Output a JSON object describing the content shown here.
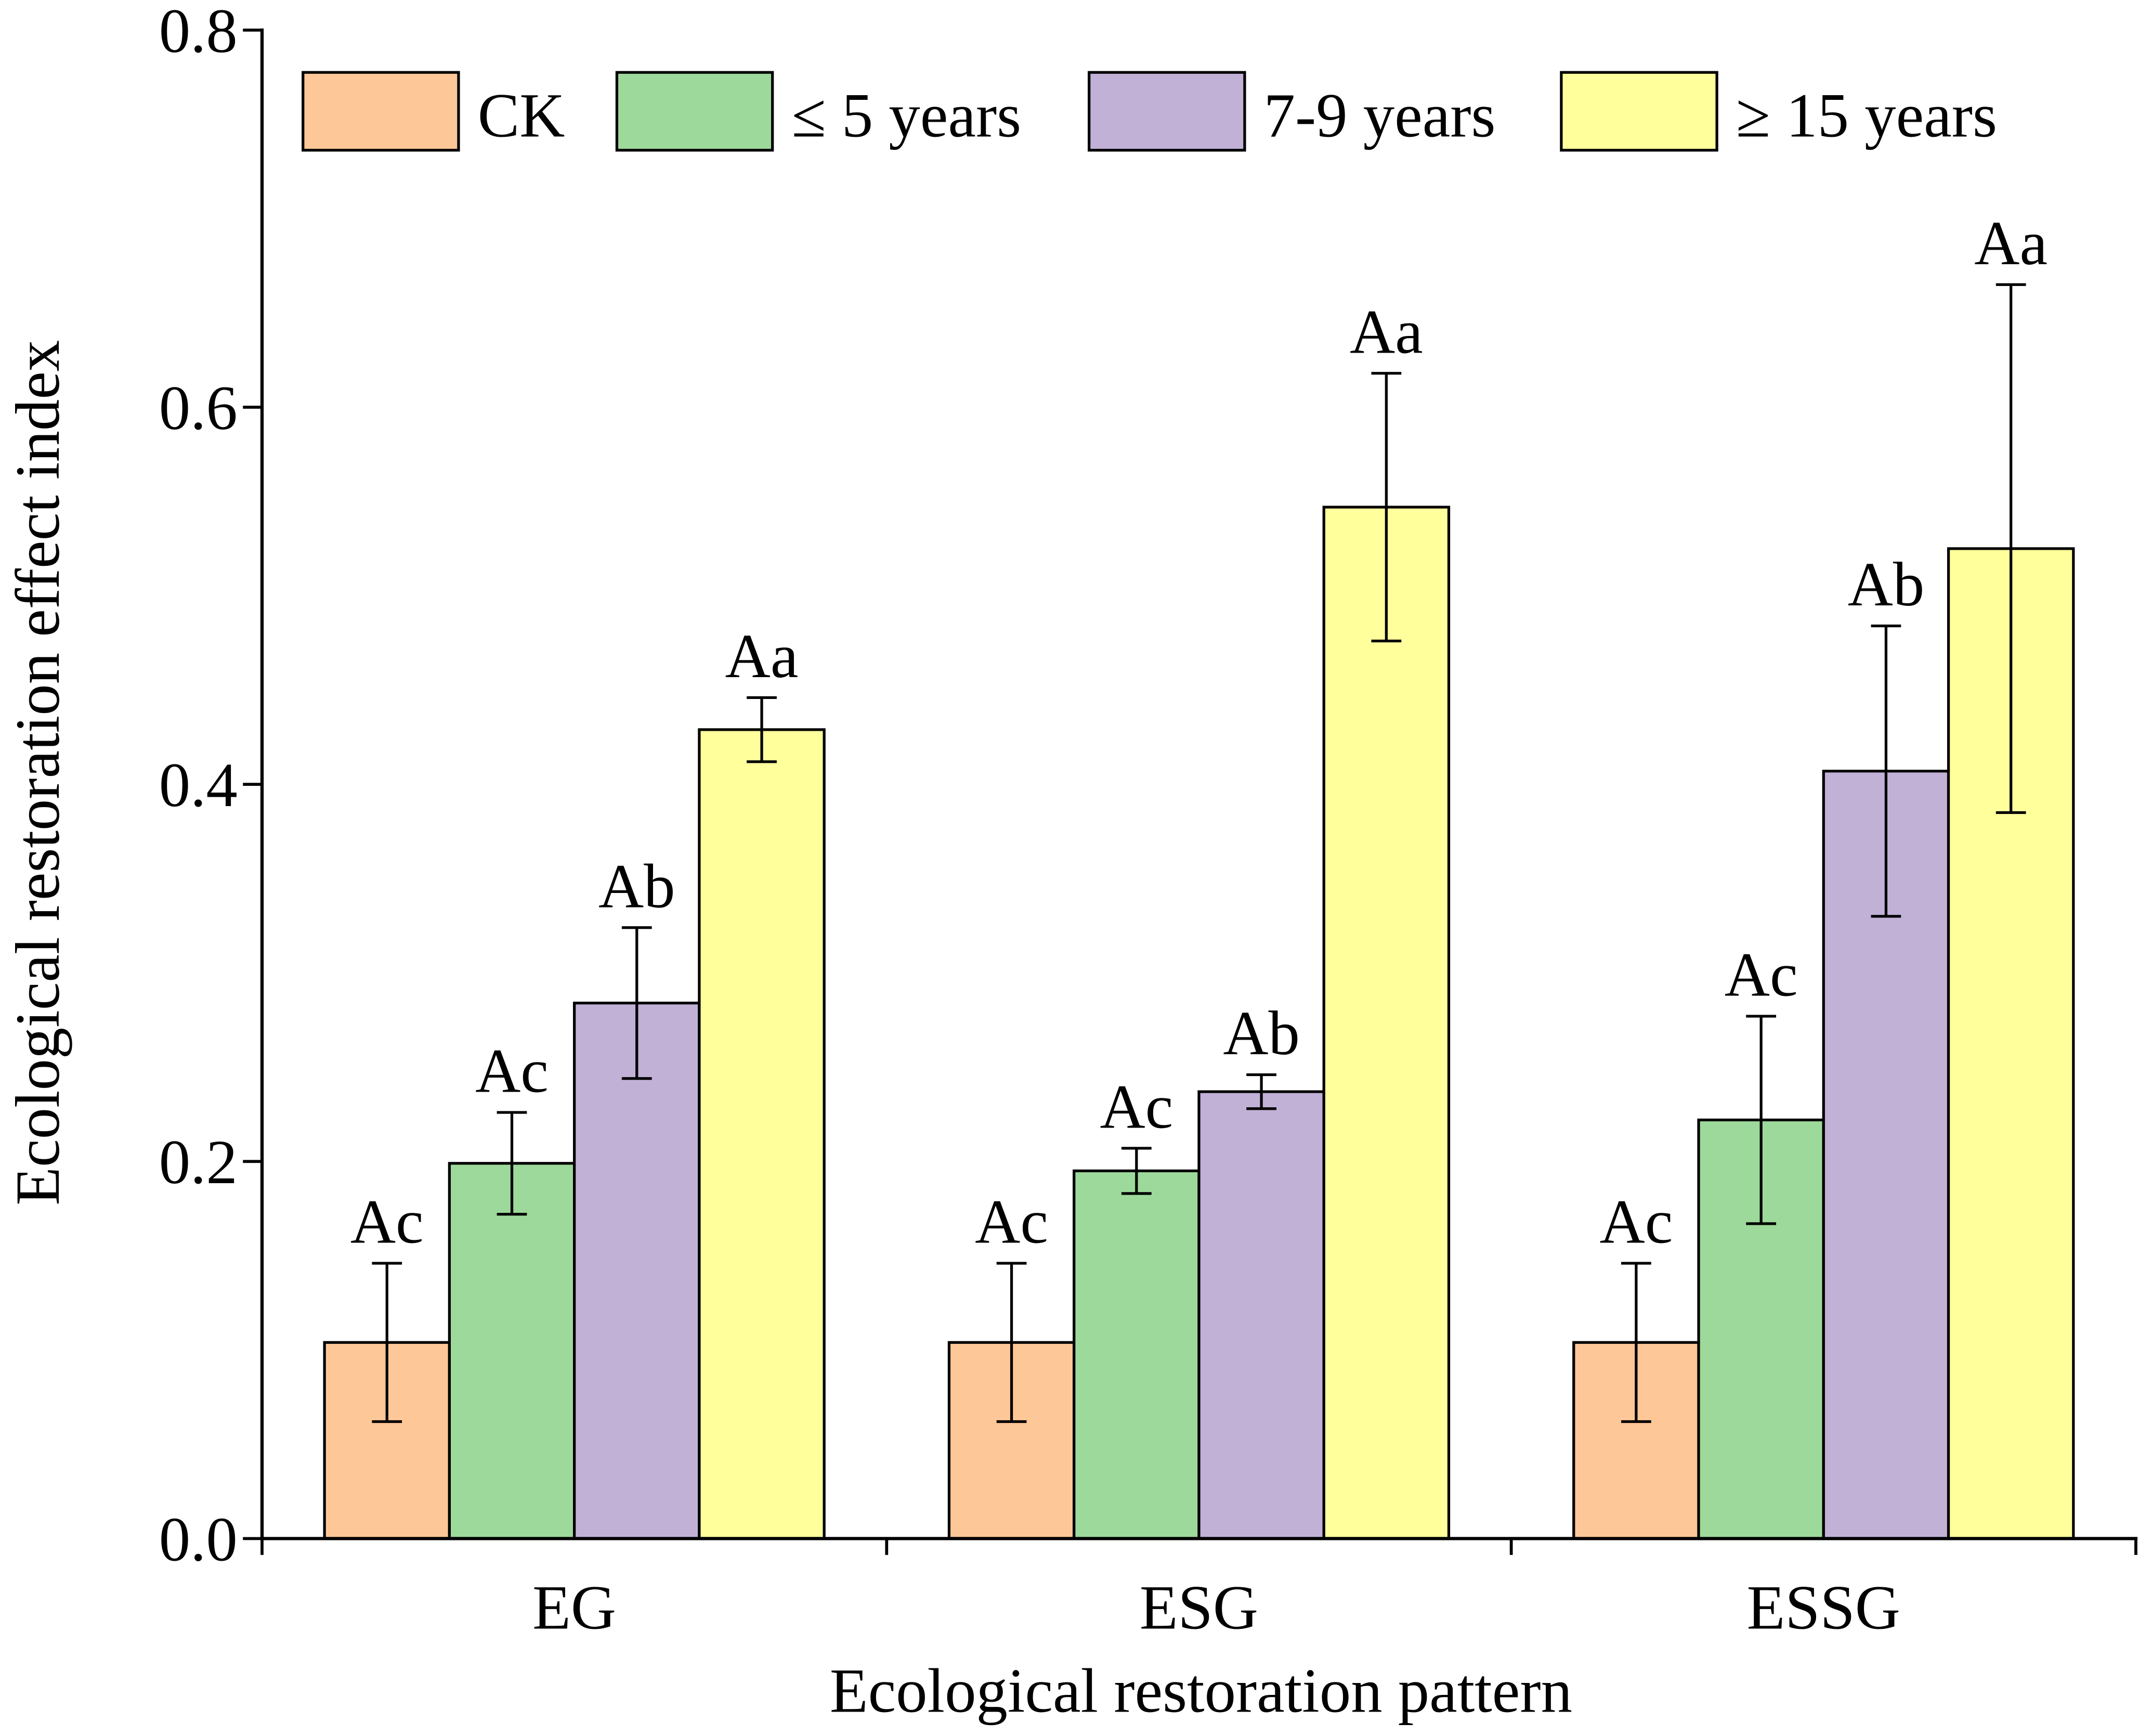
{
  "chart_data": {
    "type": "bar",
    "xlabel": "Ecological restoration pattern",
    "ylabel": "Ecological restoration effect index",
    "categories": [
      "EG",
      "ESG",
      "ESSG"
    ],
    "ylim": [
      0,
      0.8
    ],
    "yticks": [
      0,
      0.2,
      0.4,
      0.6,
      0.8
    ],
    "ytick_labels": [
      "0.0",
      "0.2",
      "0.4",
      "0.6",
      "0.8"
    ],
    "grid": false,
    "series": [
      {
        "name": "CK",
        "color": "#FDC797",
        "values": [
          0.104,
          0.104,
          0.104
        ],
        "errors": [
          0.042,
          0.042,
          0.042
        ],
        "labels": [
          "Ac",
          "Ac",
          "Ac"
        ]
      },
      {
        "name": "≤ 5 years",
        "color": "#9DD99A",
        "values": [
          0.199,
          0.195,
          0.222
        ],
        "errors": [
          0.027,
          0.012,
          0.055
        ],
        "labels": [
          "Ac",
          "Ac",
          "Ac"
        ]
      },
      {
        "name": "7-9 years",
        "color": "#C1B1D7",
        "values": [
          0.284,
          0.237,
          0.407
        ],
        "errors": [
          0.04,
          0.009,
          0.077
        ],
        "labels": [
          "Ab",
          "Ab",
          "Ab"
        ]
      },
      {
        "name": "≥ 15 years",
        "color": "#FFFF9C",
        "values": [
          0.429,
          0.547,
          0.525
        ],
        "errors": [
          0.017,
          0.071,
          0.14
        ],
        "labels": [
          "Aa",
          "Aa",
          "Aa"
        ]
      }
    ]
  }
}
